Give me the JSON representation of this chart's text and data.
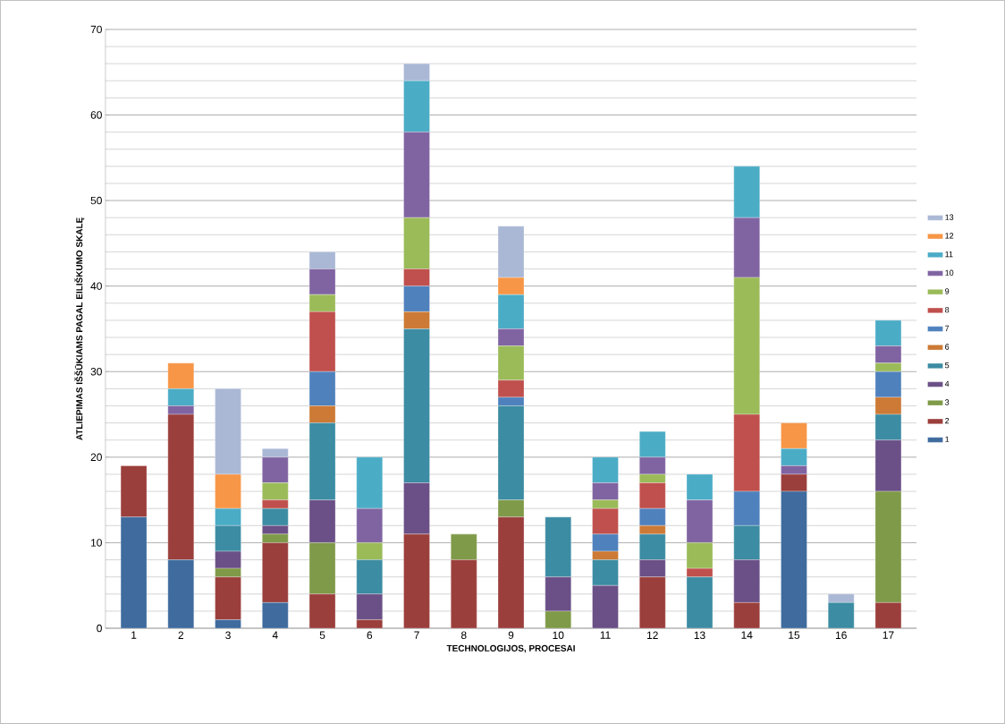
{
  "chart_data": {
    "type": "bar",
    "stacked": true,
    "xlabel": "TECHNOLOGIJOS, PROCESAI",
    "ylabel": "ATLIEPIMAS IŠŠŪKIAMS PAGAL EILIŠKUMO SKALĘ",
    "categories": [
      "1",
      "2",
      "3",
      "4",
      "5",
      "6",
      "7",
      "8",
      "9",
      "10",
      "11",
      "12",
      "13",
      "14",
      "15",
      "16",
      "17"
    ],
    "ylim": [
      0,
      70
    ],
    "yticks": [
      0,
      10,
      20,
      30,
      40,
      50,
      60,
      70
    ],
    "grid": "y",
    "legend": "right",
    "series": [
      {
        "name": "1",
        "color": "#3f6b9e",
        "values": [
          13,
          8,
          1,
          3,
          0,
          0,
          0,
          0,
          0,
          0,
          0,
          0,
          0,
          0,
          16,
          0,
          0
        ]
      },
      {
        "name": "2",
        "color": "#9b3f3c",
        "values": [
          6,
          17,
          5,
          7,
          4,
          1,
          11,
          8,
          13,
          0,
          0,
          6,
          0,
          3,
          2,
          0,
          3
        ]
      },
      {
        "name": "3",
        "color": "#7f9a48",
        "values": [
          0,
          0,
          1,
          1,
          6,
          0,
          0,
          3,
          2,
          2,
          0,
          0,
          0,
          0,
          0,
          0,
          13
        ]
      },
      {
        "name": "4",
        "color": "#6a5087",
        "values": [
          0,
          0,
          2,
          1,
          5,
          3,
          6,
          0,
          0,
          4,
          5,
          2,
          0,
          5,
          0,
          0,
          6
        ]
      },
      {
        "name": "5",
        "color": "#3c8ca3",
        "values": [
          0,
          0,
          3,
          2,
          9,
          4,
          18,
          0,
          11,
          7,
          3,
          3,
          6,
          4,
          0,
          3,
          3
        ]
      },
      {
        "name": "6",
        "color": "#cc7a35",
        "values": [
          0,
          0,
          0,
          0,
          2,
          0,
          2,
          0,
          0,
          0,
          1,
          1,
          0,
          0,
          0,
          0,
          2
        ]
      },
      {
        "name": "7",
        "color": "#4f81bd",
        "values": [
          0,
          0,
          0,
          0,
          4,
          0,
          3,
          0,
          1,
          0,
          2,
          2,
          0,
          4,
          0,
          0,
          3
        ]
      },
      {
        "name": "8",
        "color": "#c0504d",
        "values": [
          0,
          0,
          0,
          1,
          7,
          0,
          2,
          0,
          2,
          0,
          3,
          3,
          1,
          9,
          0,
          0,
          0
        ]
      },
      {
        "name": "9",
        "color": "#9bbb59",
        "values": [
          0,
          0,
          0,
          2,
          2,
          2,
          6,
          0,
          4,
          0,
          1,
          1,
          3,
          16,
          0,
          0,
          1
        ]
      },
      {
        "name": "10",
        "color": "#8064a2",
        "values": [
          0,
          1,
          0,
          3,
          3,
          4,
          10,
          0,
          2,
          0,
          2,
          2,
          5,
          7,
          1,
          0,
          2
        ]
      },
      {
        "name": "11",
        "color": "#4bacc6",
        "values": [
          0,
          2,
          2,
          0,
          0,
          6,
          6,
          0,
          4,
          0,
          3,
          3,
          3,
          6,
          2,
          0,
          3
        ]
      },
      {
        "name": "12",
        "color": "#f79646",
        "values": [
          0,
          3,
          4,
          0,
          0,
          0,
          0,
          0,
          2,
          0,
          0,
          0,
          0,
          0,
          3,
          0,
          0
        ]
      },
      {
        "name": "13",
        "color": "#aab8d6",
        "values": [
          0,
          0,
          10,
          1,
          2,
          0,
          2,
          0,
          6,
          0,
          0,
          0,
          0,
          0,
          0,
          1,
          0
        ]
      }
    ]
  }
}
